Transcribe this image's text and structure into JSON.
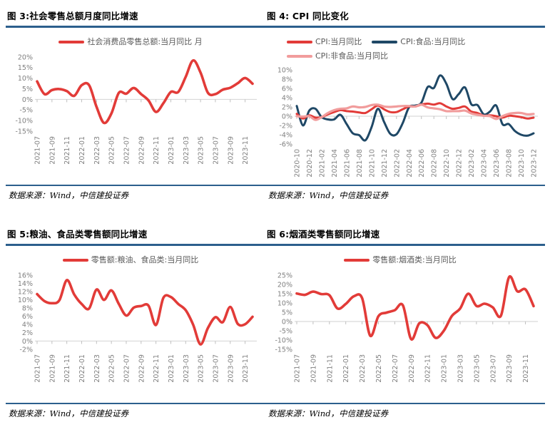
{
  "style": {
    "rule_color": "#2C5F8D",
    "axis_line_color": "#D9D9D9",
    "tick_color": "#BFBFBF",
    "axis_label_color": "#7F7F7F",
    "legend_text_color": "#595959",
    "red": "#E23B38",
    "navy": "#1F4866",
    "pink": "#F19C9C"
  },
  "chart_data": [
    {
      "type": "line",
      "title": "图 3:社会零售总额月度同比增速",
      "source": "数据来源：Wind，中信建投证券",
      "ylabel": "",
      "xlabel": "",
      "ylim": [
        -15,
        20
      ],
      "yticks": [
        20,
        15,
        10,
        5,
        0,
        -5,
        -10,
        -15
      ],
      "label_every": 2,
      "legend_position": "top-center",
      "grid": "zero-axis-only",
      "x": [
        "2021-07",
        "2021-08",
        "2021-09",
        "2021-10",
        "2021-11",
        "2021-12",
        "2022-01",
        "2022-02",
        "2022-03",
        "2022-04",
        "2022-05",
        "2022-06",
        "2022-07",
        "2022-08",
        "2022-09",
        "2022-10",
        "2022-11",
        "2022-12",
        "2023-01",
        "2023-02",
        "2023-03",
        "2023-04",
        "2023-05",
        "2023-06",
        "2023-07",
        "2023-08",
        "2023-09",
        "2023-10",
        "2023-11",
        "2023-12"
      ],
      "series": [
        {
          "name": "社会消费品零售总额:当月同比 月",
          "color": "#E23B38",
          "width": 3.6,
          "values": [
            8.5,
            2.5,
            4.4,
            4.9,
            3.9,
            1.7,
            6.7,
            6.7,
            -3.5,
            -11.1,
            -6.7,
            3.1,
            2.7,
            5.4,
            2.5,
            -0.5,
            -5.9,
            -1.8,
            3.5,
            3.5,
            10.6,
            18.4,
            12.7,
            3.1,
            2.5,
            4.6,
            5.5,
            7.6,
            10.1,
            7.4
          ]
        }
      ]
    },
    {
      "type": "line",
      "title": "图 4: CPI 同比变化",
      "source": "数据来源：Wind，中信建投证券",
      "ylabel": "",
      "xlabel": "",
      "ylim": [
        -6,
        10
      ],
      "yticks": [
        10,
        8,
        6,
        4,
        2,
        0,
        -2,
        -4,
        -6
      ],
      "label_every": 2,
      "legend_position": "top-left-wrap",
      "grid": "zero-axis-only",
      "draw_order": [
        1,
        0,
        2
      ],
      "x": [
        "2020-10",
        "2020-11",
        "2020-12",
        "2021-01",
        "2021-02",
        "2021-03",
        "2021-04",
        "2021-05",
        "2021-06",
        "2021-07",
        "2021-08",
        "2021-09",
        "2021-10",
        "2021-11",
        "2021-12",
        "2022-01",
        "2022-02",
        "2022-03",
        "2022-04",
        "2022-05",
        "2022-06",
        "2022-07",
        "2022-08",
        "2022-09",
        "2022-10",
        "2022-11",
        "2022-12",
        "2023-01",
        "2023-02",
        "2023-03",
        "2023-04",
        "2023-05",
        "2023-06",
        "2023-07",
        "2023-08",
        "2023-09",
        "2023-10",
        "2023-11",
        "2023-12"
      ],
      "series": [
        {
          "name": "CPI:当月同比",
          "color": "#E23B38",
          "width": 3,
          "values": [
            0.5,
            -0.5,
            0.2,
            -0.3,
            -0.2,
            0.4,
            0.9,
            1.3,
            1.1,
            1.0,
            0.8,
            0.7,
            1.5,
            2.3,
            1.5,
            0.9,
            0.9,
            1.5,
            2.1,
            2.1,
            2.5,
            2.7,
            2.5,
            2.8,
            2.1,
            1.6,
            1.8,
            2.1,
            1.0,
            0.7,
            0.1,
            0.2,
            0.0,
            -0.3,
            0.1,
            0.0,
            -0.2,
            -0.5,
            -0.3
          ]
        },
        {
          "name": "CPI:食品:当月同比",
          "color": "#1F4866",
          "width": 3,
          "values": [
            2.2,
            -2.0,
            1.2,
            1.6,
            -0.2,
            -0.7,
            -0.7,
            0.3,
            -1.7,
            -3.7,
            -4.1,
            -5.2,
            -2.4,
            1.6,
            -1.2,
            -3.8,
            -3.9,
            -1.5,
            1.9,
            2.3,
            2.9,
            6.3,
            6.1,
            8.8,
            7.0,
            3.7,
            4.8,
            6.2,
            2.6,
            2.4,
            0.4,
            1.0,
            2.3,
            -1.7,
            -1.7,
            -3.2,
            -4.0,
            -4.2,
            -3.7
          ]
        },
        {
          "name": "CPI:非食品:当月同比",
          "color": "#F19C9C",
          "width": 3.2,
          "values": [
            0.0,
            -0.1,
            0.0,
            -0.8,
            -0.2,
            0.7,
            1.3,
            1.6,
            1.7,
            2.1,
            1.9,
            2.0,
            2.4,
            2.5,
            2.1,
            2.0,
            2.1,
            2.2,
            2.2,
            2.1,
            2.5,
            1.9,
            1.7,
            1.5,
            1.1,
            1.1,
            1.1,
            1.2,
            0.6,
            0.3,
            0.1,
            0.0,
            -0.6,
            0.0,
            0.5,
            0.7,
            0.7,
            0.4,
            0.5
          ]
        }
      ]
    },
    {
      "type": "line",
      "title": "图 5:粮油、食品类零售额同比增速",
      "source": "数据来源：Wind，中信建投证券",
      "ylabel": "",
      "xlabel": "",
      "ylim": [
        -2,
        16
      ],
      "yticks": [
        16,
        14,
        12,
        10,
        8,
        6,
        4,
        2,
        0,
        -2
      ],
      "label_every": 2,
      "legend_position": "top-center",
      "grid": "zero-axis-only",
      "x": [
        "2021-07",
        "2021-08",
        "2021-09",
        "2021-10",
        "2021-11",
        "2021-12",
        "2022-01",
        "2022-02",
        "2022-03",
        "2022-04",
        "2022-05",
        "2022-06",
        "2022-07",
        "2022-08",
        "2022-09",
        "2022-10",
        "2022-11",
        "2022-12",
        "2023-01",
        "2023-02",
        "2023-03",
        "2023-04",
        "2023-05",
        "2023-06",
        "2023-07",
        "2023-08",
        "2023-09",
        "2023-10",
        "2023-11",
        "2023-12"
      ],
      "series": [
        {
          "name": "零售额:粮油、食品类:当月同比",
          "color": "#E23B38",
          "width": 3.6,
          "values": [
            11.4,
            9.7,
            9.2,
            9.9,
            14.8,
            11.3,
            9.0,
            7.9,
            12.5,
            10.0,
            12.3,
            9.0,
            6.2,
            8.1,
            8.5,
            8.6,
            3.9,
            10.5,
            10.7,
            9.0,
            7.5,
            4.0,
            -0.8,
            3.2,
            5.8,
            4.6,
            8.3,
            4.2,
            4.1,
            5.9
          ]
        }
      ]
    },
    {
      "type": "line",
      "title": "图 6:烟酒类零售额同比增速",
      "source": "数据来源：Wind，中信建投证券",
      "ylabel": "",
      "xlabel": "",
      "ylim": [
        -15,
        25
      ],
      "yticks": [
        25,
        20,
        15,
        10,
        5,
        0,
        -5,
        -10,
        -15
      ],
      "label_every": 2,
      "legend_position": "top-center",
      "grid": "zero-axis-only",
      "x": [
        "2021-07",
        "2021-08",
        "2021-09",
        "2021-10",
        "2021-11",
        "2021-12",
        "2022-01",
        "2022-02",
        "2022-03",
        "2022-04",
        "2022-05",
        "2022-06",
        "2022-07",
        "2022-08",
        "2022-09",
        "2022-10",
        "2022-11",
        "2022-12",
        "2023-01",
        "2023-02",
        "2023-03",
        "2023-04",
        "2023-05",
        "2023-06",
        "2023-07",
        "2023-08",
        "2023-09",
        "2023-10",
        "2023-11",
        "2023-12"
      ],
      "series": [
        {
          "name": "零售额:烟酒类:当月同比",
          "color": "#E23B38",
          "width": 3.6,
          "values": [
            15.1,
            14.4,
            16.1,
            14.8,
            14.2,
            7.0,
            9.5,
            13.6,
            12.6,
            -7.7,
            2.9,
            4.8,
            6.1,
            8.7,
            -9.5,
            -1.0,
            -2.0,
            -8.8,
            -5.0,
            3.0,
            7.0,
            15.0,
            8.4,
            9.6,
            7.6,
            3.1,
            24.0,
            16.3,
            17.3,
            8.3
          ]
        }
      ]
    }
  ]
}
